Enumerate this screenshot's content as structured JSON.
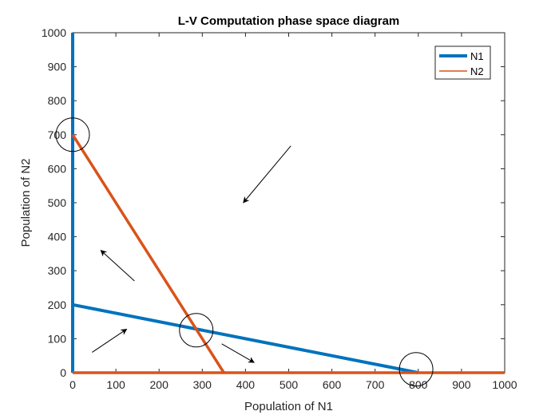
{
  "chart_data": {
    "type": "line",
    "title": "L-V Computation phase space diagram",
    "xlabel": "Population of N1",
    "ylabel": "Population of N2",
    "xlim": [
      0,
      1000
    ],
    "ylim": [
      0,
      1000
    ],
    "xticks": [
      0,
      100,
      200,
      300,
      400,
      500,
      600,
      700,
      800,
      900,
      1000
    ],
    "yticks": [
      0,
      100,
      200,
      300,
      400,
      500,
      600,
      700,
      800,
      900,
      1000
    ],
    "grid": false,
    "legend_position": "top-right",
    "series": [
      {
        "name": "N1",
        "color": "#0072BD",
        "segments": [
          [
            [
              0,
              0
            ],
            [
              0,
              1000
            ]
          ],
          [
            [
              0,
              200
            ],
            [
              800,
              0
            ]
          ]
        ]
      },
      {
        "name": "N2",
        "color": "#D95319",
        "segments": [
          [
            [
              0,
              0
            ],
            [
              1000,
              0
            ]
          ],
          [
            [
              0,
              700
            ],
            [
              350,
              0
            ]
          ]
        ]
      }
    ],
    "annotations": {
      "equilibrium_circles": [
        {
          "x": 0,
          "y": 700
        },
        {
          "x": 286,
          "y": 125
        },
        {
          "x": 795,
          "y": 10
        }
      ],
      "direction_arrows": [
        {
          "from": [
            505,
            667
          ],
          "to": [
            395,
            500
          ]
        },
        {
          "from": [
            143,
            270
          ],
          "to": [
            65,
            360
          ]
        },
        {
          "from": [
            45,
            60
          ],
          "to": [
            125,
            128
          ]
        },
        {
          "from": [
            345,
            85
          ],
          "to": [
            420,
            30
          ]
        }
      ]
    }
  }
}
